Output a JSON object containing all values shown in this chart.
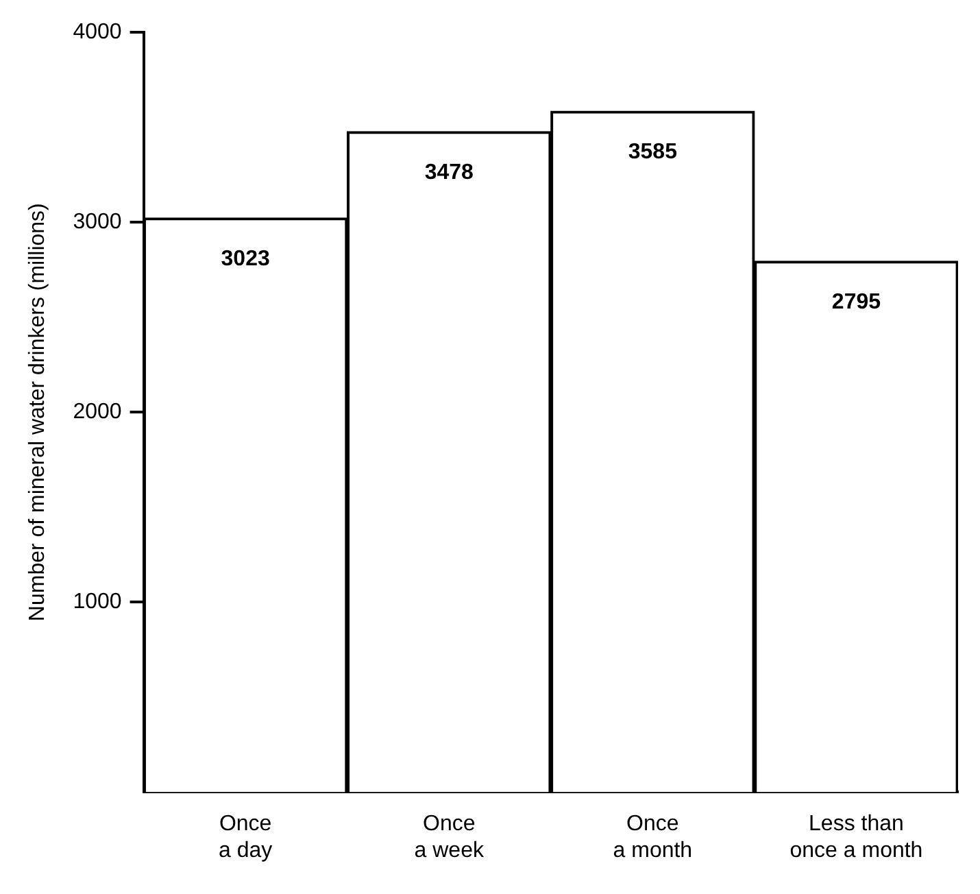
{
  "chart_data": {
    "type": "bar",
    "ylabel": "Number of mineral water drinkers (millions)",
    "categories": [
      "Once\na day",
      "Once\na week",
      "Once\na month",
      "Less than\nonce a month"
    ],
    "values": [
      3023,
      3478,
      3585,
      2795
    ],
    "color": "#ffffff",
    "ylim": [
      0,
      4000
    ],
    "yticks": [
      1000,
      2000,
      3000,
      4000
    ],
    "grid": false,
    "legend": false,
    "data_labels": true
  }
}
